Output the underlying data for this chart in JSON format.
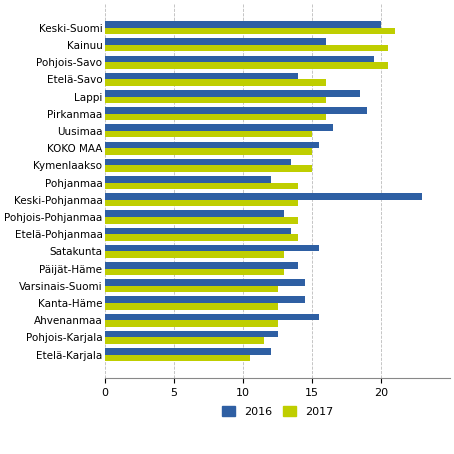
{
  "categories": [
    "Keski-Suomi",
    "Kainuu",
    "Pohjois-Savo",
    "Etelä-Savo",
    "Lappi",
    "Pirkanmaa",
    "Uusimaa",
    "KOKO MAA",
    "Kymenlaakso",
    "Pohjanmaa",
    "Keski-Pohjanmaa",
    "Pohjois-Pohjanmaa",
    "Etelä-Pohjanmaa",
    "Satakunta",
    "Päijät-Häme",
    "Varsinais-Suomi",
    "Kanta-Häme",
    "Ahvenanmaa",
    "Pohjois-Karjala",
    "Etelä-Karjala"
  ],
  "values_2016": [
    20.0,
    16.0,
    19.5,
    14.0,
    18.5,
    19.0,
    16.5,
    15.5,
    13.5,
    12.0,
    23.0,
    13.0,
    13.5,
    15.5,
    14.0,
    14.5,
    14.5,
    15.5,
    12.5,
    12.0
  ],
  "values_2017": [
    21.0,
    20.5,
    20.5,
    16.0,
    16.0,
    16.0,
    15.0,
    15.0,
    15.0,
    14.0,
    14.0,
    14.0,
    14.0,
    13.0,
    13.0,
    12.5,
    12.5,
    12.5,
    11.5,
    10.5
  ],
  "color_2016": "#2e5fa3",
  "color_2017": "#bfce00",
  "xlim": [
    0,
    25
  ],
  "xticks": [
    0,
    5,
    10,
    15,
    20
  ],
  "legend_2016": "2016",
  "legend_2017": "2017",
  "bar_height": 0.38,
  "grid_color": "#bbbbbb",
  "background_color": "#ffffff"
}
